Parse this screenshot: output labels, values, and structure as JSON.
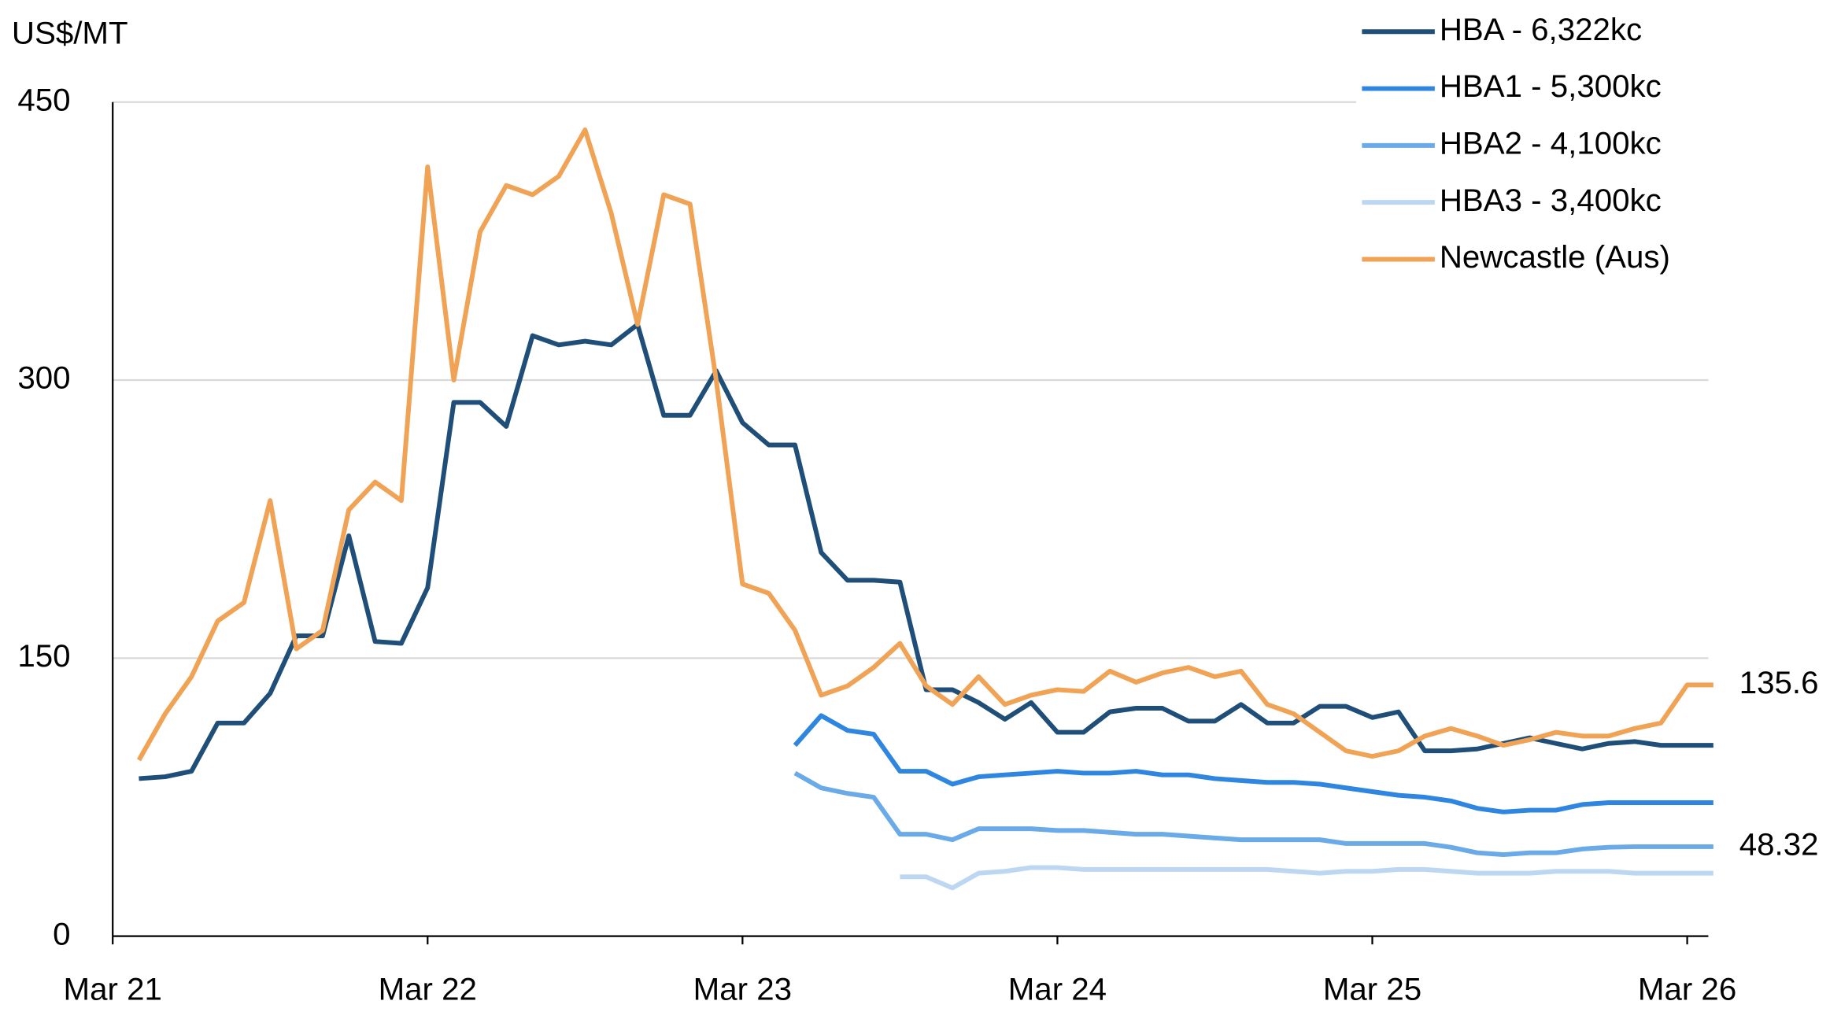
{
  "chart_data": {
    "type": "line",
    "y_axis_label": "US$/MT",
    "x": [
      "2021-04",
      "2021-05",
      "2021-06",
      "2021-07",
      "2021-08",
      "2021-09",
      "2021-10",
      "2021-11",
      "2021-12",
      "2022-01",
      "2022-02",
      "2022-03",
      "2022-04",
      "2022-05",
      "2022-06",
      "2022-07",
      "2022-08",
      "2022-09",
      "2022-10",
      "2022-11",
      "2022-12",
      "2023-01",
      "2023-02",
      "2023-03",
      "2023-04",
      "2023-05",
      "2023-06",
      "2023-07",
      "2023-08",
      "2023-09",
      "2023-10",
      "2023-11",
      "2023-12",
      "2024-01",
      "2024-02",
      "2024-03",
      "2024-04",
      "2024-05",
      "2024-06",
      "2024-07",
      "2024-08",
      "2024-09",
      "2024-10",
      "2024-11",
      "2024-12",
      "2025-01",
      "2025-02",
      "2025-03",
      "2025-04",
      "2025-05",
      "2025-06",
      "2025-07",
      "2025-08",
      "2025-09",
      "2025-10",
      "2025-11",
      "2025-12",
      "2026-01",
      "2026-02",
      "2026-03",
      "2026-04"
    ],
    "series": [
      {
        "name": "HBA - 6,322kc",
        "color": "#1f4e79",
        "values": [
          85,
          86,
          89,
          115,
          115,
          131,
          162,
          162,
          216,
          159,
          158,
          188,
          288,
          288,
          275,
          324,
          319,
          321,
          319,
          330,
          281,
          281,
          305,
          277,
          265,
          265,
          207,
          192,
          192,
          191,
          133,
          133,
          126,
          117,
          126,
          110,
          110,
          121,
          123,
          123,
          116,
          116,
          125,
          115,
          115,
          124,
          124,
          118,
          121,
          100,
          100,
          101,
          104,
          107,
          104,
          101,
          104,
          105,
          103,
          103,
          103
        ]
      },
      {
        "name": "HBA1 - 5,300kc",
        "color": "#2f86e0",
        "values": [
          null,
          null,
          null,
          null,
          null,
          null,
          null,
          null,
          null,
          null,
          null,
          null,
          null,
          null,
          null,
          null,
          null,
          null,
          null,
          null,
          null,
          null,
          null,
          null,
          null,
          103,
          119,
          111,
          109,
          89,
          89,
          82,
          86,
          87,
          88,
          89,
          88,
          88,
          89,
          87,
          87,
          85,
          84,
          83,
          83,
          82,
          80,
          78,
          76,
          75,
          73,
          69,
          67,
          68,
          68,
          71,
          72,
          72,
          72,
          72,
          72
        ]
      },
      {
        "name": "HBA2 - 4,100kc",
        "color": "#6aaae8",
        "values": [
          null,
          null,
          null,
          null,
          null,
          null,
          null,
          null,
          null,
          null,
          null,
          null,
          null,
          null,
          null,
          null,
          null,
          null,
          null,
          null,
          null,
          null,
          null,
          null,
          null,
          88,
          80,
          77,
          75,
          55,
          55,
          52,
          58,
          58,
          58,
          57,
          57,
          56,
          55,
          55,
          54,
          53,
          52,
          52,
          52,
          52,
          50,
          50,
          50,
          50,
          48,
          45,
          44,
          45,
          45,
          47,
          48,
          48.32,
          48.32,
          48.32,
          48.32
        ],
        "value_labels": [
          null,
          null,
          null,
          null,
          null,
          null,
          null,
          null,
          null,
          null,
          null,
          null,
          null,
          null,
          null,
          null,
          null,
          null,
          null,
          null,
          null,
          null,
          null,
          null,
          null,
          null,
          null,
          null,
          null,
          null,
          null,
          null,
          null,
          null,
          null,
          null,
          null,
          null,
          null,
          null,
          null,
          null,
          null,
          null,
          null,
          null,
          null,
          null,
          null,
          null,
          null,
          null,
          null,
          null,
          null,
          null,
          null,
          null,
          null,
          null,
          "48.32"
        ]
      },
      {
        "name": "HBA3 - 3,400kc",
        "color": "#bdd7f3",
        "values": [
          null,
          null,
          null,
          null,
          null,
          null,
          null,
          null,
          null,
          null,
          null,
          null,
          null,
          null,
          null,
          null,
          null,
          null,
          null,
          null,
          null,
          null,
          null,
          null,
          null,
          null,
          null,
          null,
          null,
          32,
          32,
          26,
          34,
          35,
          37,
          37,
          36,
          36,
          36,
          36,
          36,
          36,
          36,
          36,
          35,
          34,
          35,
          35,
          36,
          36,
          35,
          34,
          34,
          34,
          35,
          35,
          35,
          34,
          34,
          34,
          34
        ]
      },
      {
        "name": "Newcastle (Aus)",
        "color": "#f0a255",
        "values": [
          95,
          120,
          140,
          170,
          180,
          235,
          155,
          165,
          230,
          245,
          235,
          415,
          300,
          380,
          405,
          400,
          410,
          435,
          390,
          330,
          400,
          395,
          300,
          190,
          185,
          165,
          130,
          135,
          145,
          158,
          135,
          125,
          140,
          125,
          130,
          133,
          132,
          143,
          137,
          142,
          145,
          140,
          143,
          125,
          120,
          110,
          100,
          97,
          100,
          108,
          112,
          108,
          103,
          106,
          110,
          108,
          108,
          112,
          115,
          135.6,
          135.6
        ],
        "value_labels": [
          null,
          null,
          null,
          null,
          null,
          null,
          null,
          null,
          null,
          null,
          null,
          null,
          null,
          null,
          null,
          null,
          null,
          null,
          null,
          null,
          null,
          null,
          null,
          null,
          null,
          null,
          null,
          null,
          null,
          null,
          null,
          null,
          null,
          null,
          null,
          null,
          null,
          null,
          null,
          null,
          null,
          null,
          null,
          null,
          null,
          null,
          null,
          null,
          null,
          null,
          null,
          null,
          null,
          null,
          null,
          null,
          null,
          null,
          null,
          null,
          "135.6"
        ]
      }
    ],
    "xticks": [
      {
        "value": "2021-03",
        "label": "Mar 21"
      },
      {
        "value": "2022-03",
        "label": "Mar 22"
      },
      {
        "value": "2023-03",
        "label": "Mar 23"
      },
      {
        "value": "2024-03",
        "label": "Mar 24"
      },
      {
        "value": "2025-03",
        "label": "Mar 25"
      },
      {
        "value": "2026-03",
        "label": "Mar 26"
      }
    ],
    "ylim": [
      0,
      450
    ],
    "yticks": [
      0,
      150,
      300,
      450
    ],
    "grid": true,
    "legend": "top-right"
  }
}
